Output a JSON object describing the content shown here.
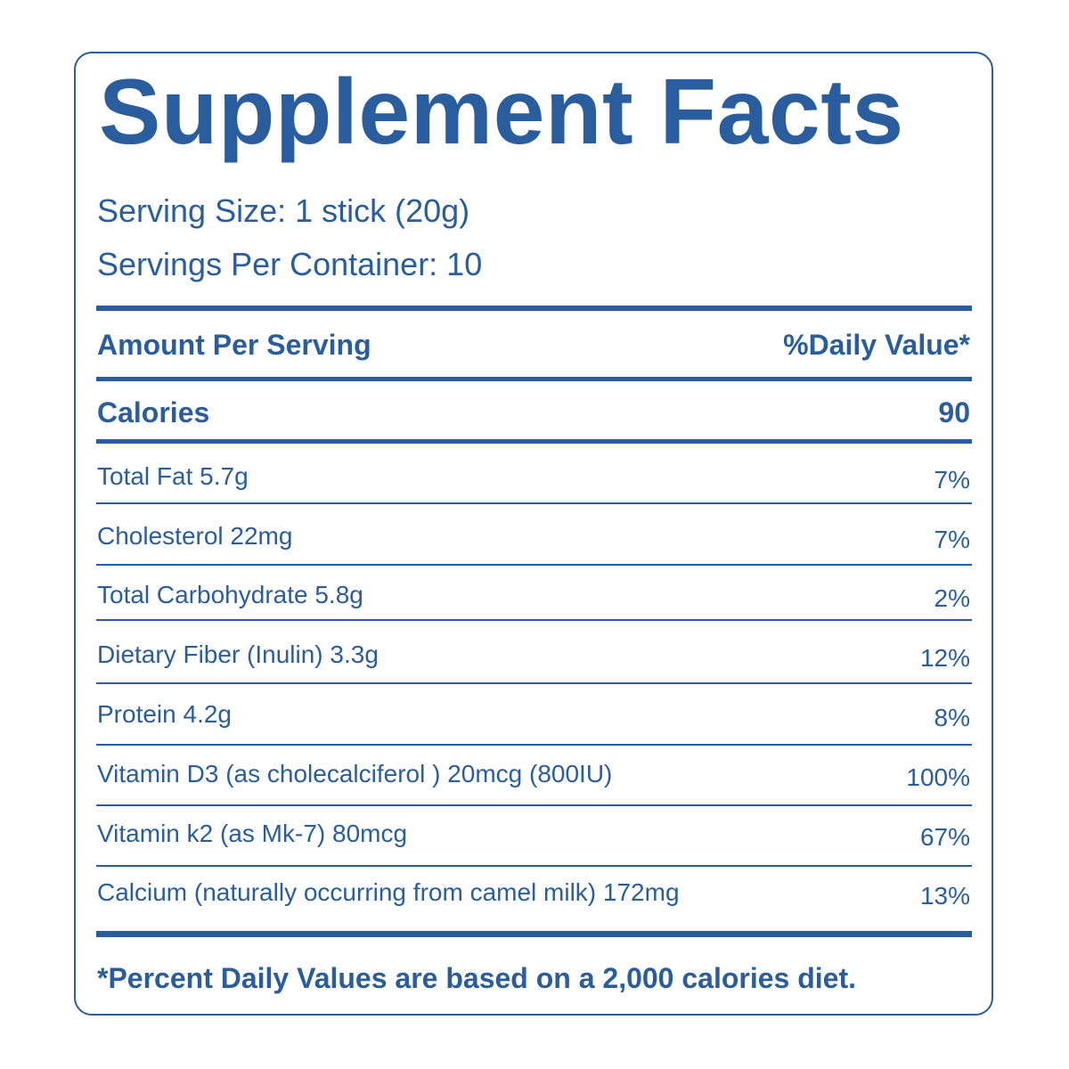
{
  "label": {
    "title": "Supplement Facts",
    "serving_size": "Serving Size: 1 stick (20g)",
    "servings_per_container": "Servings Per Container: 10",
    "header": {
      "amount_label": "Amount Per Serving",
      "dv_label": "%Daily Value*"
    },
    "calories": {
      "label": "Calories",
      "value": "90"
    },
    "nutrients": [
      {
        "name": "Total Fat  5.7g",
        "dv": "7%"
      },
      {
        "name": "Cholesterol  22mg",
        "dv": "7%"
      },
      {
        "name": "Total Carbohydrate  5.8g",
        "dv": "2%"
      },
      {
        "name": "Dietary Fiber (Inulin)  3.3g",
        "dv": "12%"
      },
      {
        "name": "Protein  4.2g",
        "dv": "8%"
      },
      {
        "name": "Vitamin D3 (as cholecalciferol ) 20mcg (800IU)",
        "dv": "100%"
      },
      {
        "name": "Vitamin k2 (as Mk-7)  80mcg",
        "dv": "67%"
      },
      {
        "name": "Calcium (naturally occurring from camel milk) 172mg",
        "dv": "13%"
      }
    ],
    "footnote": "*Percent Daily Values are based on a 2,000 calories diet."
  },
  "colors": {
    "ink": "#2a5d9e",
    "background": "#ffffff"
  }
}
